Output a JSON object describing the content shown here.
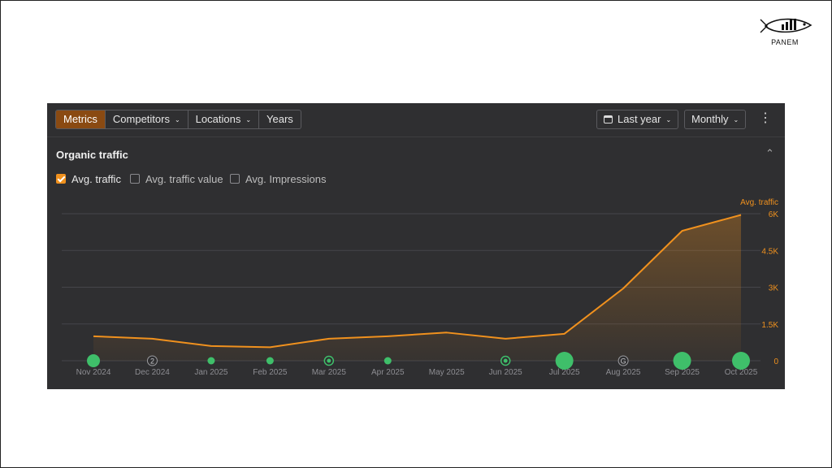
{
  "brand": {
    "logo_text": "PANEM"
  },
  "toolbar": {
    "tabs": [
      {
        "label": "Metrics",
        "active": true,
        "dropdown": false
      },
      {
        "label": "Competitors",
        "active": false,
        "dropdown": true
      },
      {
        "label": "Locations",
        "active": false,
        "dropdown": true
      },
      {
        "label": "Years",
        "active": false,
        "dropdown": false
      }
    ],
    "period_label": "Last year",
    "granularity_label": "Monthly",
    "more_icon": "⋮"
  },
  "panel": {
    "title": "Organic traffic",
    "collapse_icon": "chevron-up-icon",
    "metrics": [
      {
        "label": "Avg. traffic",
        "checked": true
      },
      {
        "label": "Avg. traffic value",
        "checked": false
      },
      {
        "label": "Avg. Impressions",
        "checked": false
      }
    ]
  },
  "colors": {
    "accent": "#f0911e",
    "panel_bg": "#2f2f31",
    "marker_green": "#3fbf6a"
  },
  "chart_data": {
    "type": "area",
    "title": "",
    "series": [
      {
        "name": "Avg. traffic",
        "values": [
          1000,
          900,
          600,
          550,
          900,
          1000,
          1150,
          900,
          1100,
          2950,
          5300,
          5950
        ]
      }
    ],
    "categories": [
      "Nov 2024",
      "Dec 2024",
      "Jan 2025",
      "Feb 2025",
      "Mar 2025",
      "Apr 2025",
      "May 2025",
      "Jun 2025",
      "Jul 2025",
      "Aug 2025",
      "Sep 2025",
      "Oct 2025"
    ],
    "ylim": [
      0,
      6000
    ],
    "y_ticks": [
      "0",
      "1.5K",
      "3K",
      "4.5K",
      "6K"
    ],
    "y_tick_values": [
      0,
      1500,
      3000,
      4500,
      6000
    ],
    "ylabel": "Avg. traffic",
    "y_axis_side": "right",
    "grid": true,
    "markers": [
      {
        "category": "Nov 2024",
        "kind": "dot",
        "size": "medium",
        "label": ""
      },
      {
        "category": "Dec 2024",
        "kind": "badge",
        "label": "2"
      },
      {
        "category": "Jan 2025",
        "kind": "dot",
        "size": "small",
        "label": ""
      },
      {
        "category": "Feb 2025",
        "kind": "dot",
        "size": "small",
        "label": ""
      },
      {
        "category": "Mar 2025",
        "kind": "ring",
        "size": "small",
        "label": ""
      },
      {
        "category": "Apr 2025",
        "kind": "dot",
        "size": "small",
        "label": ""
      },
      {
        "category": "Jun 2025",
        "kind": "ring",
        "size": "small",
        "label": ""
      },
      {
        "category": "Jul 2025",
        "kind": "dot",
        "size": "large",
        "label": ""
      },
      {
        "category": "Aug 2025",
        "kind": "badge",
        "label": "G"
      },
      {
        "category": "Sep 2025",
        "kind": "dot",
        "size": "large",
        "label": ""
      },
      {
        "category": "Oct 2025",
        "kind": "dot",
        "size": "large",
        "label": ""
      }
    ]
  }
}
